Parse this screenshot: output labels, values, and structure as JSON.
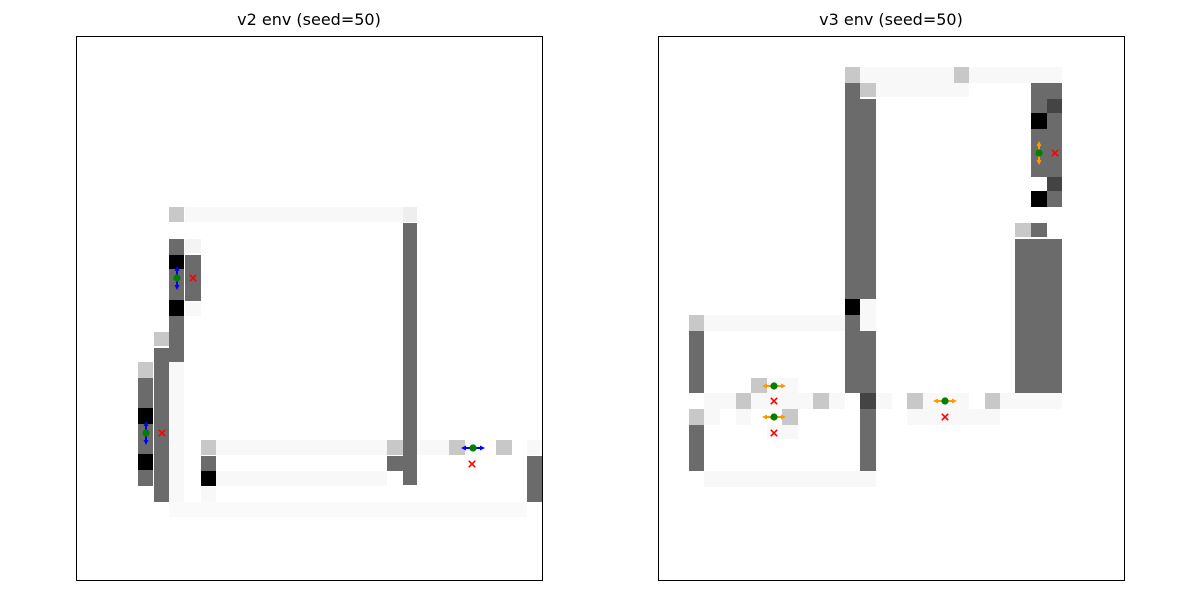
{
  "panels": [
    {
      "title": "v2 env (seed=50)",
      "arrow_color": "#0000ff",
      "cells": [
        [
          "#c8c8c8",
          23,
          24,
          13,
          14
        ],
        [
          "#f8f8f8",
          38,
          24,
          216,
          14
        ],
        [
          "#eeeeee",
          403,
          24,
          14,
          14
        ],
        [
          "#6b6b6b",
          169,
          239,
          15,
          36
        ],
        [
          "#000000",
          169,
          255,
          15,
          14
        ],
        [
          "#6b6b6b",
          169,
          271,
          15,
          29
        ],
        [
          "#000000",
          169,
          300,
          15,
          16
        ],
        [
          "#6b6b6b",
          169,
          316,
          15,
          46
        ],
        [
          "#6b6b6b",
          185,
          255,
          16,
          46
        ],
        [
          "#f4f4f4",
          185,
          239,
          16,
          14
        ],
        [
          "#f8f8f8",
          185,
          302,
          16,
          14
        ],
        [
          "#c8c8c8",
          154,
          332,
          15,
          14
        ],
        [
          "#6b6b6b",
          154,
          348,
          15,
          14
        ],
        [
          "#c8c8c8",
          138,
          362,
          15,
          16
        ],
        [
          "#6b6b6b",
          138,
          378,
          15,
          30
        ],
        [
          "#000000",
          138,
          408,
          15,
          16
        ],
        [
          "#6b6b6b",
          138,
          424,
          15,
          30
        ],
        [
          "#000000",
          138,
          454,
          15,
          16
        ],
        [
          "#6b6b6b",
          138,
          470,
          15,
          16
        ],
        [
          "#6b6b6b",
          154,
          362,
          15,
          140
        ],
        [
          "#f8f8f8",
          169,
          362,
          15,
          140
        ],
        [
          "#6b6b6b",
          403,
          223,
          14,
          262
        ],
        [
          "#c8c8c8",
          201,
          440,
          15,
          15
        ],
        [
          "#6b6b6b",
          201,
          456,
          15,
          15
        ],
        [
          "#000000",
          201,
          471,
          15,
          15
        ],
        [
          "#f8f8f8",
          201,
          487,
          15,
          15
        ],
        [
          "#f8f8f8",
          216,
          440,
          171,
          15
        ],
        [
          "#f8f8f8",
          216,
          471,
          171,
          15
        ],
        [
          "#c8c8c8",
          387,
          440,
          16,
          15
        ],
        [
          "#6b6b6b",
          387,
          456,
          16,
          15
        ],
        [
          "#6b6b6b",
          403,
          440,
          14,
          15
        ],
        [
          "#f8f8f8",
          417,
          440,
          16,
          15
        ],
        [
          "#f8f8f8",
          433,
          440,
          16,
          15
        ],
        [
          "#c8c8c8",
          449,
          440,
          16,
          15
        ],
        [
          "#f8f8f8",
          465,
          440,
          16,
          15
        ],
        [
          "#c8c8c8",
          496,
          440,
          16,
          15
        ],
        [
          "#f8f8f8",
          527,
          440,
          15,
          15
        ],
        [
          "#6b6b6b",
          527,
          456,
          15,
          46
        ],
        [
          "#fafafa",
          169,
          502,
          358,
          15
        ]
      ],
      "agents": [
        [
          177,
          278,
          "v"
        ],
        [
          146,
          433,
          "v"
        ],
        [
          473,
          448,
          "h"
        ]
      ],
      "goals": [
        [
          193,
          278
        ],
        [
          162,
          433
        ],
        [
          472,
          464
        ]
      ]
    },
    {
      "title": "v3 env (seed=50)",
      "arrow_color": "#ff9900",
      "cells": [
        [
          "#c8c8c8",
          845,
          67,
          15,
          16
        ],
        [
          "#f8f8f8",
          860,
          67,
          94,
          16
        ],
        [
          "#c8c8c8",
          954,
          67,
          15,
          16
        ],
        [
          "#f8f8f8",
          969,
          67,
          62,
          16
        ],
        [
          "#f8f8f8",
          1031,
          67,
          31,
          16
        ],
        [
          "#c8c8c8",
          860,
          83,
          16,
          14
        ],
        [
          "#f8f8f8",
          876,
          83,
          93,
          14
        ],
        [
          "#6b6b6b",
          845,
          83,
          15,
          216
        ],
        [
          "#6b6b6b",
          860,
          99,
          16,
          200
        ],
        [
          "#000000",
          845,
          299,
          15,
          16
        ],
        [
          "#f8f8f8",
          860,
          299,
          16,
          16
        ],
        [
          "#6b6b6b",
          845,
          315,
          15,
          16
        ],
        [
          "#f8f8f8",
          860,
          315,
          16,
          16
        ],
        [
          "#6b6b6b",
          845,
          331,
          31,
          62
        ],
        [
          "#6b6b6b",
          860,
          393,
          16,
          78
        ],
        [
          "#6b6b6b",
          1031,
          83,
          31,
          16
        ],
        [
          "#6b6b6b",
          1031,
          99,
          16,
          14
        ],
        [
          "#444444",
          1047,
          99,
          15,
          14
        ],
        [
          "#000000",
          1031,
          113,
          16,
          16
        ],
        [
          "#6b6b6b",
          1047,
          113,
          15,
          16
        ],
        [
          "#6b6b6b",
          1031,
          129,
          31,
          48
        ],
        [
          "#444444",
          1047,
          177,
          15,
          14
        ],
        [
          "#000000",
          1031,
          191,
          16,
          16
        ],
        [
          "#6b6b6b",
          1047,
          191,
          15,
          16
        ],
        [
          "#c8c8c8",
          1015,
          223,
          16,
          14
        ],
        [
          "#6b6b6b",
          1031,
          223,
          16,
          14
        ],
        [
          "#6b6b6b",
          1015,
          239,
          47,
          154
        ],
        [
          "#c8c8c8",
          689,
          315,
          15,
          16
        ],
        [
          "#f8f8f8",
          704,
          315,
          141,
          16
        ],
        [
          "#6b6b6b",
          689,
          331,
          15,
          62
        ],
        [
          "#f8f8f8",
          704,
          393,
          16,
          16
        ],
        [
          "#f8f8f8",
          720,
          393,
          16,
          16
        ],
        [
          "#c8c8c8",
          736,
          393,
          15,
          16
        ],
        [
          "#c8c8c8",
          751,
          378,
          16,
          15
        ],
        [
          "#f8f8f8",
          767,
          378,
          31,
          15
        ],
        [
          "#f8f8f8",
          751,
          393,
          62,
          16
        ],
        [
          "#c8c8c8",
          813,
          393,
          16,
          16
        ],
        [
          "#f8f8f8",
          829,
          393,
          16,
          16
        ],
        [
          "#444444",
          860,
          393,
          16,
          16
        ],
        [
          "#f8f8f8",
          876,
          393,
          16,
          16
        ],
        [
          "#c8c8c8",
          907,
          393,
          16,
          16
        ],
        [
          "#f8f8f8",
          923,
          393,
          46,
          16
        ],
        [
          "#c8c8c8",
          985,
          393,
          15,
          16
        ],
        [
          "#f8f8f8",
          1000,
          393,
          62,
          16
        ],
        [
          "#c8c8c8",
          689,
          409,
          15,
          16
        ],
        [
          "#f8f8f8",
          704,
          409,
          16,
          16
        ],
        [
          "#f8f8f8",
          736,
          409,
          15,
          16
        ],
        [
          "#c8c8c8",
          782,
          409,
          16,
          16
        ],
        [
          "#f8f8f8",
          907,
          409,
          93,
          16
        ],
        [
          "#6b6b6b",
          689,
          425,
          15,
          46
        ],
        [
          "#f8f8f8",
          767,
          425,
          31,
          14
        ],
        [
          "#f8f8f8",
          704,
          471,
          172,
          16
        ]
      ],
      "agents": [
        [
          1039,
          153,
          "v"
        ],
        [
          774,
          386,
          "h"
        ],
        [
          774,
          417,
          "h"
        ],
        [
          945,
          401,
          "h"
        ]
      ],
      "goals": [
        [
          1055,
          153
        ],
        [
          774,
          401
        ],
        [
          774,
          433
        ],
        [
          945,
          417
        ]
      ]
    }
  ]
}
